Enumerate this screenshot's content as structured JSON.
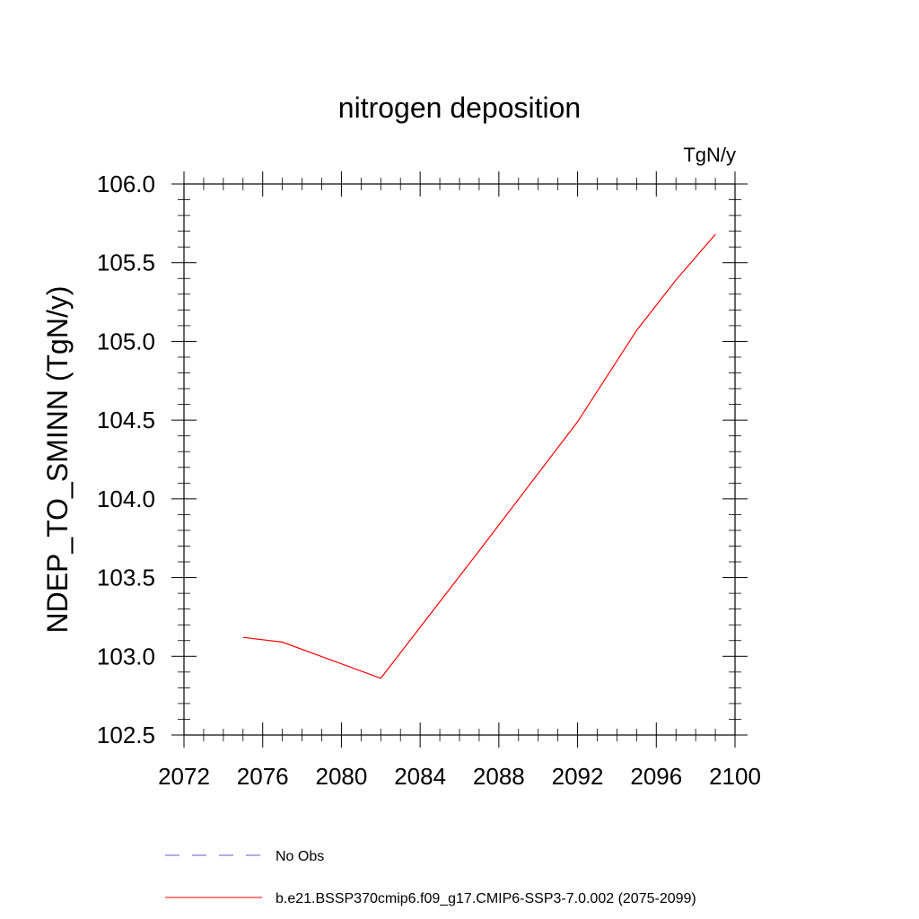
{
  "chart_data": {
    "type": "line",
    "title": "nitrogen deposition",
    "units": "TgN/y",
    "xlabel": "",
    "ylabel": "NDEP_TO_SMINN  (TgN/y)",
    "xlim": [
      2072,
      2100
    ],
    "ylim": [
      102.5,
      106.0
    ],
    "xticks": [
      2072,
      2076,
      2080,
      2084,
      2088,
      2092,
      2096,
      2100
    ],
    "yticks": [
      102.5,
      103.0,
      103.5,
      104.0,
      104.5,
      105.0,
      105.5,
      106.0
    ],
    "ytick_labels": [
      "102.5",
      "103.0",
      "103.5",
      "104.0",
      "104.5",
      "105.0",
      "105.5",
      "106.0"
    ],
    "grid": false,
    "legend_position": "bottom",
    "series": [
      {
        "name": "No Obs",
        "color": "#6a5acd",
        "style": "dashed",
        "x": [],
        "y": []
      },
      {
        "name": "b.e21.BSSP370cmip6.f09_g17.CMIP6-SSP3-7.0.002 (2075-2099)",
        "color": "#ff0000",
        "style": "solid",
        "x": [
          2075,
          2077,
          2082,
          2087,
          2092,
          2095,
          2097,
          2099
        ],
        "y": [
          103.12,
          103.09,
          102.86,
          103.67,
          104.49,
          105.07,
          105.39,
          105.68
        ]
      }
    ]
  }
}
